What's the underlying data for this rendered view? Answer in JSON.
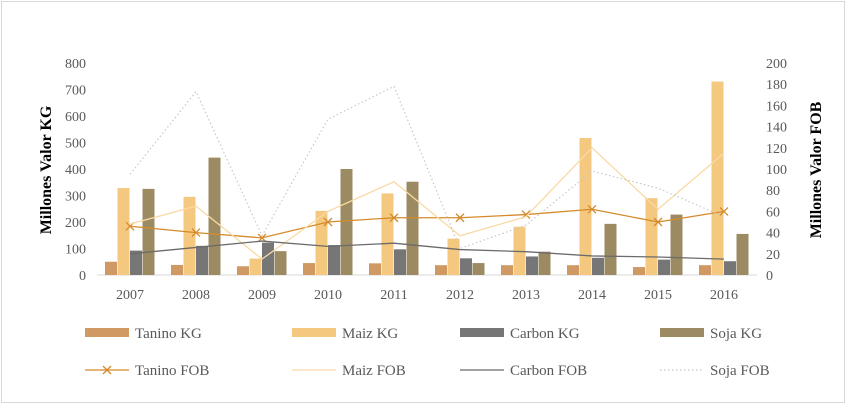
{
  "chart_data": {
    "type": "bar",
    "title": "",
    "categories": [
      "2007",
      "2008",
      "2009",
      "2010",
      "2011",
      "2012",
      "2013",
      "2014",
      "2015",
      "2016"
    ],
    "ylabel": "Millones Valor KG",
    "y2label": "Millones Valor FOB",
    "ylim": [
      0,
      800
    ],
    "y2lim": [
      0,
      200
    ],
    "yticks": [
      "0",
      "100",
      "200",
      "300",
      "400",
      "500",
      "600",
      "700",
      "800"
    ],
    "y2ticks": [
      "0",
      "20",
      "40",
      "60",
      "80",
      "100",
      "120",
      "140",
      "160",
      "180",
      "200"
    ],
    "grid": false,
    "legend_position": "bottom",
    "bar_series": [
      {
        "name": "Tanino KG",
        "axis": "left",
        "color": "#d09862",
        "values": [
          50,
          38,
          33,
          45,
          44,
          37,
          37,
          37,
          30,
          37
        ]
      },
      {
        "name": "Maiz KG",
        "axis": "left",
        "color": "#f4c97f",
        "values": [
          328,
          295,
          62,
          242,
          308,
          137,
          182,
          517,
          290,
          730
        ]
      },
      {
        "name": "Carbon KG",
        "axis": "left",
        "color": "#767676",
        "values": [
          92,
          110,
          122,
          113,
          97,
          63,
          70,
          65,
          58,
          52
        ]
      },
      {
        "name": "Soja KG",
        "axis": "left",
        "color": "#9c8b62",
        "values": [
          325,
          443,
          90,
          400,
          352,
          45,
          88,
          193,
          228,
          155
        ]
      }
    ],
    "line_series": [
      {
        "name": "Tanino FOB",
        "axis": "right",
        "color": "#d58b2b",
        "style": "solid-x",
        "values": [
          46,
          40,
          35,
          50,
          54,
          54,
          57,
          62,
          50,
          60
        ]
      },
      {
        "name": "Maiz FOB",
        "axis": "right",
        "color": "#f9d9a4",
        "style": "solid",
        "values": [
          48,
          65,
          15,
          60,
          88,
          37,
          55,
          120,
          62,
          115
        ]
      },
      {
        "name": "Carbon FOB",
        "axis": "right",
        "color": "#6b6b6b",
        "style": "solid",
        "values": [
          20,
          26,
          32,
          27,
          30,
          24,
          22,
          18,
          17,
          15
        ]
      },
      {
        "name": "Soja FOB",
        "axis": "right",
        "color": "#c4c4c4",
        "style": "dotted",
        "values": [
          95,
          173,
          37,
          147,
          178,
          25,
          47,
          98,
          82,
          55
        ]
      }
    ],
    "legend": [
      "Tanino KG",
      "Maiz KG",
      "Carbon KG",
      "Soja KG",
      "Tanino FOB",
      "Maiz FOB",
      "Carbon FOB",
      "Soja FOB"
    ]
  }
}
